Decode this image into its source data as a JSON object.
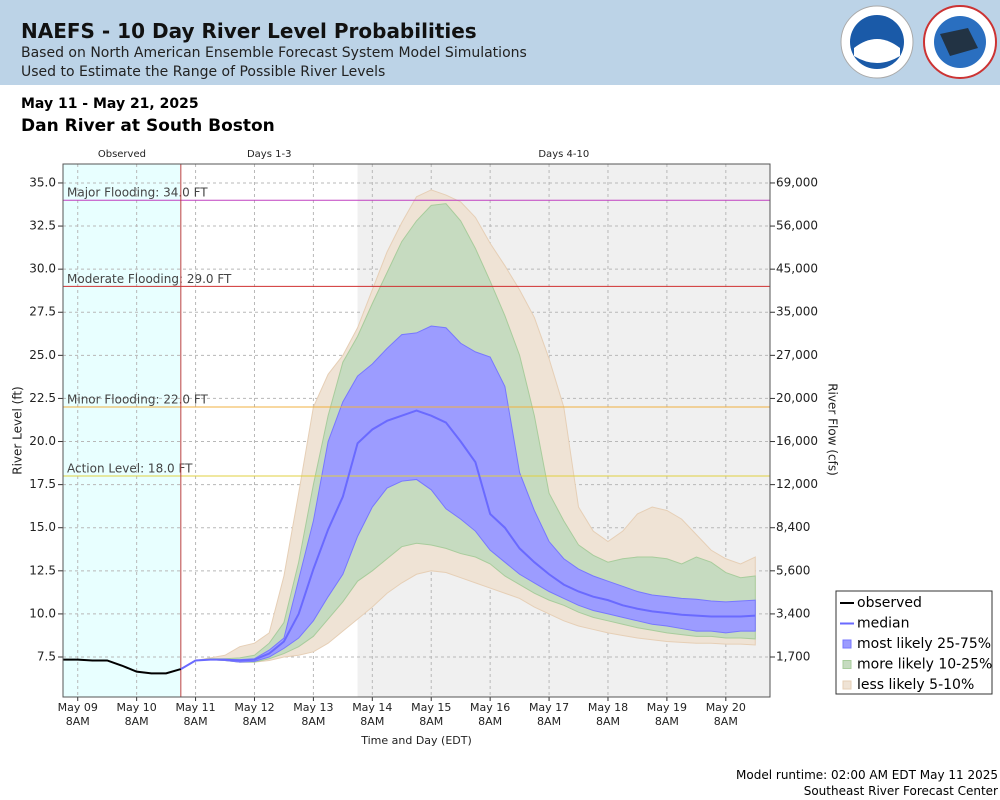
{
  "header": {
    "title": "NAEFS - 10 Day River Level Probabilities",
    "subtitle1": "Based on North American Ensemble Forecast System Model Simulations",
    "subtitle2": "Used to Estimate the Range of Possible River Levels"
  },
  "footer": {
    "runtime": "Model runtime: 02:00 AM EDT May 11 2025",
    "center": "Southeast River Forecast Center"
  },
  "chart_data": {
    "type": "probability-band",
    "date_range": "May 11 - May 21, 2025",
    "title": "Dan River at South Boston",
    "ylabel": "River Level (ft)",
    "y2label": "River Flow (cfs)",
    "xlabel": "Time and Day (EDT)",
    "xlim": [
      "2025-05-09T02:00",
      "2025-05-21T02:00"
    ],
    "xticks": [
      {
        "value": "2025-05-09T08:00",
        "label": "May 09\n8AM"
      },
      {
        "value": "2025-05-10T08:00",
        "label": "May 10\n8AM"
      },
      {
        "value": "2025-05-11T08:00",
        "label": "May 11\n8AM"
      },
      {
        "value": "2025-05-12T08:00",
        "label": "May 12\n8AM"
      },
      {
        "value": "2025-05-13T08:00",
        "label": "May 13\n8AM"
      },
      {
        "value": "2025-05-14T08:00",
        "label": "May 14\n8AM"
      },
      {
        "value": "2025-05-15T08:00",
        "label": "May 15\n8AM"
      },
      {
        "value": "2025-05-16T08:00",
        "label": "May 16\n8AM"
      },
      {
        "value": "2025-05-17T08:00",
        "label": "May 17\n8AM"
      },
      {
        "value": "2025-05-18T08:00",
        "label": "May 18\n8AM"
      },
      {
        "value": "2025-05-19T08:00",
        "label": "May 19\n8AM"
      },
      {
        "value": "2025-05-20T08:00",
        "label": "May 20\n8AM"
      }
    ],
    "ylim": [
      5.18,
      36.1
    ],
    "yticks": [
      7.5,
      {
        "value": 10,
        "label": "10.0"
      },
      12.5,
      {
        "value": 15,
        "label": "15.0"
      },
      17.5,
      {
        "value": 20,
        "label": "20.0"
      },
      22.5,
      {
        "value": 25,
        "label": "25.0"
      },
      27.5,
      {
        "value": 30,
        "label": "30.0"
      },
      32.5,
      {
        "value": 35,
        "label": "35.0"
      }
    ],
    "y2ticks": [
      {
        "value": 1700,
        "label": "1,700"
      },
      {
        "value": 3400,
        "label": "3,400"
      },
      {
        "value": 5600,
        "label": "5,600"
      },
      {
        "value": 8400,
        "label": "8,400"
      },
      {
        "value": 12000,
        "label": "12,000"
      },
      {
        "value": 16000,
        "label": "16,000"
      },
      {
        "value": 20000,
        "label": "20,000"
      },
      {
        "value": 27000,
        "label": "27,000"
      },
      {
        "value": 35000,
        "label": "35,000"
      },
      {
        "value": 45000,
        "label": "45,000"
      },
      {
        "value": 56000,
        "label": "56,000"
      },
      {
        "value": 69000,
        "label": "69,000"
      }
    ],
    "grid": true,
    "regions": [
      {
        "label": "Observed",
        "start": "2025-05-09T02:00",
        "end": "2025-05-11T02:00",
        "color": "#e8ffff"
      },
      {
        "label": "Days 1-3",
        "start": "2025-05-11T02:00",
        "end": "2025-05-14T02:00",
        "color": "#ffffff"
      },
      {
        "label": "Days 4-10",
        "start": "2025-05-14T02:00",
        "end": "2025-05-21T02:00",
        "color": "#f0f0f0"
      }
    ],
    "thresholds": [
      {
        "label": "Major Flooding: 34.0 FT",
        "value": 34,
        "color": "#c040c0"
      },
      {
        "label": "Moderate Flooding: 29.0 FT",
        "value": 29,
        "color": "#d03030"
      },
      {
        "label": "Minor Flooding: 22.0 FT",
        "value": 22,
        "color": "#f0b040"
      },
      {
        "label": "Action Level: 18.0 FT",
        "value": 18,
        "color": "#e0d040"
      }
    ],
    "legend": "right",
    "x": [
      "2025-05-11T02:00",
      "2025-05-11T08:00",
      "2025-05-11T14:00",
      "2025-05-11T20:00",
      "2025-05-12T02:00",
      "2025-05-12T08:00",
      "2025-05-12T14:00",
      "2025-05-12T20:00",
      "2025-05-13T02:00",
      "2025-05-13T08:00",
      "2025-05-13T14:00",
      "2025-05-13T20:00",
      "2025-05-14T02:00",
      "2025-05-14T08:00",
      "2025-05-14T14:00",
      "2025-05-14T20:00",
      "2025-05-15T02:00",
      "2025-05-15T08:00",
      "2025-05-15T14:00",
      "2025-05-15T20:00",
      "2025-05-16T02:00",
      "2025-05-16T08:00",
      "2025-05-16T14:00",
      "2025-05-16T20:00",
      "2025-05-17T02:00",
      "2025-05-17T08:00",
      "2025-05-17T14:00",
      "2025-05-17T20:00",
      "2025-05-18T02:00",
      "2025-05-18T08:00",
      "2025-05-18T14:00",
      "2025-05-18T20:00",
      "2025-05-19T02:00",
      "2025-05-19T08:00",
      "2025-05-19T14:00",
      "2025-05-19T20:00",
      "2025-05-20T02:00",
      "2025-05-20T08:00",
      "2025-05-20T14:00",
      "2025-05-20T20:00"
    ],
    "series": [
      {
        "name": "observed",
        "kind": "line",
        "color": "#000000",
        "x": [
          "2025-05-09T02:00",
          "2025-05-09T08:00",
          "2025-05-09T14:00",
          "2025-05-09T20:00",
          "2025-05-10T02:00",
          "2025-05-10T08:00",
          "2025-05-10T14:00",
          "2025-05-10T20:00",
          "2025-05-11T02:00"
        ],
        "values": [
          7.35,
          7.35,
          7.3,
          7.3,
          7.0,
          6.65,
          6.55,
          6.55,
          6.8
        ]
      },
      {
        "name": "median",
        "kind": "line",
        "color": "#6a6aff",
        "values": [
          6.8,
          7.3,
          7.35,
          7.35,
          7.3,
          7.35,
          7.7,
          8.4,
          10.0,
          12.6,
          14.9,
          16.8,
          19.9,
          20.7,
          21.2,
          21.5,
          21.8,
          21.5,
          21.1,
          20.0,
          18.8,
          15.8,
          15.0,
          13.8,
          13.0,
          12.3,
          11.7,
          11.3,
          11.0,
          10.8,
          10.5,
          10.3,
          10.15,
          10.05,
          9.95,
          9.9,
          9.85,
          9.85,
          9.85,
          9.9
        ]
      },
      {
        "name": "most likely 25-75%",
        "kind": "band",
        "color": "#9c9cff",
        "edge": "#7777ff",
        "lower": [
          6.8,
          7.3,
          7.35,
          7.3,
          7.2,
          7.25,
          7.5,
          8.0,
          8.6,
          9.6,
          11.0,
          12.3,
          14.5,
          16.2,
          17.3,
          17.7,
          17.8,
          17.2,
          16.1,
          15.5,
          14.8,
          13.7,
          13.0,
          12.3,
          11.8,
          11.3,
          10.9,
          10.5,
          10.2,
          10.0,
          9.8,
          9.6,
          9.4,
          9.3,
          9.15,
          9.0,
          9.0,
          8.9,
          9.0,
          9.0
        ],
        "upper": [
          6.8,
          7.3,
          7.35,
          7.35,
          7.35,
          7.4,
          7.9,
          8.6,
          12.0,
          15.4,
          20.0,
          22.3,
          23.8,
          24.5,
          25.4,
          26.2,
          26.3,
          26.7,
          26.6,
          25.7,
          25.2,
          24.9,
          23.2,
          18.2,
          16.0,
          14.2,
          13.2,
          12.6,
          12.2,
          11.9,
          11.6,
          11.3,
          11.1,
          11.0,
          10.9,
          10.85,
          10.75,
          10.7,
          10.75,
          10.8
        ]
      },
      {
        "name": "more likely 10-25%",
        "kind": "band",
        "color": "#c6dbc0",
        "edge": "#a8cc9c",
        "lower": [
          6.8,
          7.3,
          7.35,
          7.3,
          7.2,
          7.2,
          7.4,
          7.7,
          8.1,
          8.7,
          9.7,
          10.7,
          11.9,
          12.5,
          13.2,
          13.9,
          14.1,
          14.0,
          13.8,
          13.5,
          13.3,
          12.9,
          12.2,
          11.7,
          11.2,
          10.8,
          10.5,
          10.1,
          9.8,
          9.6,
          9.4,
          9.2,
          9.05,
          8.9,
          8.8,
          8.7,
          8.7,
          8.6,
          8.6,
          8.55
        ],
        "upper": [
          6.8,
          7.3,
          7.4,
          7.4,
          7.45,
          7.6,
          8.3,
          9.5,
          13.0,
          17.5,
          21.5,
          24.6,
          26.1,
          28.0,
          29.8,
          31.6,
          32.8,
          33.7,
          33.8,
          32.8,
          31.2,
          29.3,
          27.3,
          25.0,
          21.5,
          17.0,
          15.4,
          14.0,
          13.4,
          13.0,
          13.2,
          13.3,
          13.3,
          13.2,
          12.9,
          13.3,
          13.0,
          12.4,
          12.1,
          12.2
        ]
      },
      {
        "name": "less likely 5-10%",
        "kind": "band",
        "color": "#efe3d5",
        "edge": "#e6cfb6",
        "lower": [
          6.8,
          7.3,
          7.35,
          7.3,
          7.2,
          7.2,
          7.3,
          7.5,
          7.6,
          7.8,
          8.3,
          9.0,
          9.7,
          10.4,
          11.2,
          11.8,
          12.3,
          12.5,
          12.4,
          12.1,
          11.8,
          11.5,
          11.2,
          10.9,
          10.4,
          10.0,
          9.6,
          9.3,
          9.1,
          8.9,
          8.75,
          8.6,
          8.5,
          8.4,
          8.35,
          8.3,
          8.3,
          8.25,
          8.25,
          8.2
        ],
        "upper": [
          6.8,
          7.3,
          7.45,
          7.6,
          8.1,
          8.3,
          8.9,
          12.2,
          17.0,
          22.0,
          23.9,
          25.0,
          26.6,
          28.8,
          31.0,
          32.7,
          34.2,
          34.6,
          34.3,
          33.9,
          33.0,
          31.5,
          30.2,
          28.8,
          27.2,
          24.8,
          22.0,
          16.2,
          14.8,
          14.2,
          14.8,
          15.8,
          16.2,
          16.0,
          15.5,
          14.6,
          13.7,
          13.2,
          12.9,
          13.3
        ]
      }
    ]
  }
}
